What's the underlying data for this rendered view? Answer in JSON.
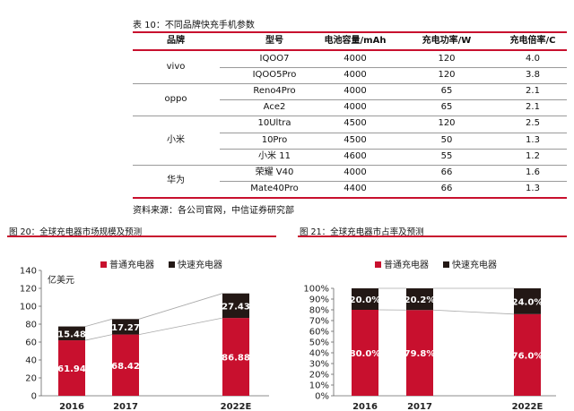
{
  "table": {
    "title": "表 10：不同品牌快充手机参数",
    "headers": [
      "品牌",
      "型号",
      "电池容量/mAh",
      "充电功率/W",
      "充电倍率/C"
    ],
    "groups": [
      {
        "brand": "vivo",
        "rows": [
          [
            "IQOO7",
            "4000",
            "120",
            "4.0"
          ],
          [
            "IQOO5Pro",
            "4000",
            "120",
            "3.8"
          ]
        ]
      },
      {
        "brand": "oppo",
        "rows": [
          [
            "Reno4Pro",
            "4000",
            "65",
            "2.1"
          ],
          [
            "Ace2",
            "4000",
            "65",
            "2.1"
          ]
        ]
      },
      {
        "brand": "小米",
        "rows": [
          [
            "10Ultra",
            "4500",
            "120",
            "2.5"
          ],
          [
            "10Pro",
            "4500",
            "50",
            "1.3"
          ],
          [
            "小米 11",
            "4600",
            "55",
            "1.2"
          ]
        ]
      },
      {
        "brand": "华为",
        "rows": [
          [
            "荣耀 V40",
            "4000",
            "66",
            "1.6"
          ],
          [
            "Mate40Pro",
            "4400",
            "66",
            "1.3"
          ]
        ]
      }
    ],
    "source": "资料来源：各公司官网，中信证券研究部"
  },
  "figures": {
    "fig20_title": "图 20：全球充电器市场规模及预测",
    "fig21_title": "图 21：全球充电器市占率及预测"
  },
  "colors": {
    "ordinary": "#c8102e",
    "fast": "#231815",
    "accent_rule": "#c8102e"
  },
  "chart_data": [
    {
      "type": "bar",
      "stacked": true,
      "categories": [
        "2016",
        "2017",
        "2022E"
      ],
      "ylabel": "亿美元",
      "ylim": [
        0,
        140
      ],
      "yticks": [
        "0",
        "20",
        "40",
        "60",
        "80",
        "100",
        "120",
        "140"
      ],
      "series": [
        {
          "name": "普通充电器",
          "values": [
            61.94,
            68.42,
            86.88
          ],
          "labels": [
            "61.94",
            "68.42",
            "86.88"
          ]
        },
        {
          "name": "快速充电器",
          "values": [
            15.48,
            17.27,
            27.43
          ],
          "labels": [
            "15.48",
            "17.27",
            "27.43"
          ]
        }
      ],
      "legend": "top"
    },
    {
      "type": "bar",
      "stacked": true,
      "categories": [
        "2016",
        "2017",
        "2022E"
      ],
      "ylim": [
        0,
        100
      ],
      "yticks": [
        "0%",
        "10%",
        "20%",
        "30%",
        "40%",
        "50%",
        "60%",
        "70%",
        "80%",
        "90%",
        "100%"
      ],
      "series": [
        {
          "name": "普通充电器",
          "values": [
            80.0,
            79.8,
            76.0
          ],
          "labels": [
            "80.0%",
            "79.8%",
            "76.0%"
          ]
        },
        {
          "name": "快速充电器",
          "values": [
            20.0,
            20.2,
            24.0
          ],
          "labels": [
            "20.0%",
            "20.2%",
            "24.0%"
          ]
        }
      ],
      "legend": "top"
    }
  ]
}
